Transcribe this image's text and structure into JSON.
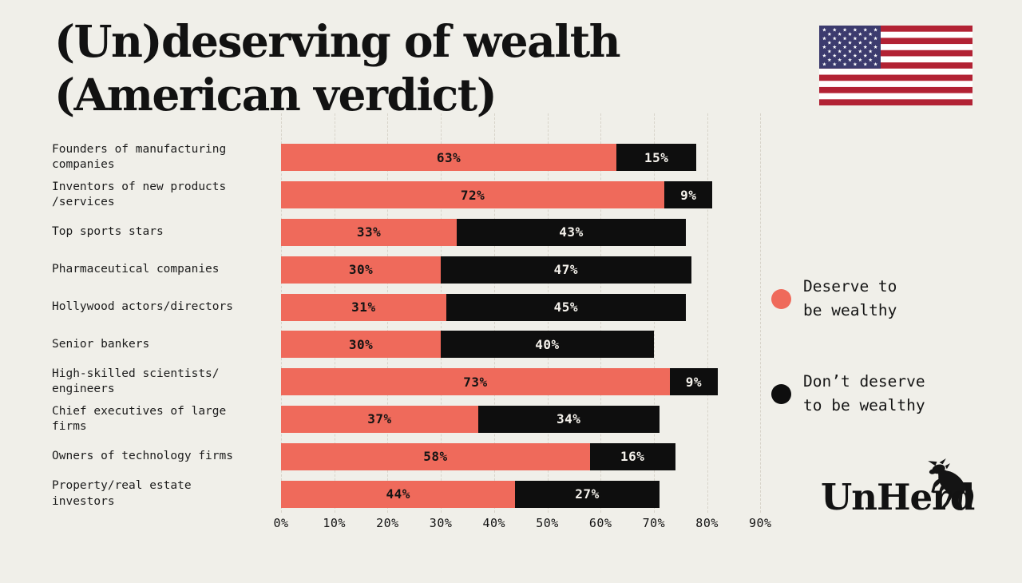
{
  "page": {
    "background": "#f0efe9"
  },
  "title": {
    "line1": "(Un)deserving of wealth",
    "line2": "(American verdict)"
  },
  "chart_data": {
    "type": "bar",
    "orientation": "horizontal",
    "stacked": true,
    "title": "(Un)deserving of wealth (American verdict)",
    "categories": [
      "Founders of manufacturing\ncompanies",
      "Inventors of new products\n/services",
      "Top sports stars",
      "Pharmaceutical companies",
      "Hollywood actors/directors",
      "Senior bankers",
      "High-skilled scientists/\nengineers",
      "Chief executives of large\nfirms",
      "Owners of technology firms",
      "Property/real estate\ninvestors"
    ],
    "series": [
      {
        "name": "Deserve to be wealthy",
        "color": "#ef6a5b",
        "text_color": "#141414",
        "values": [
          63,
          72,
          33,
          30,
          31,
          30,
          73,
          37,
          58,
          44
        ]
      },
      {
        "name": "Don't deserve to be wealthy",
        "color": "#0e0e0e",
        "text_color": "#f5f2ec",
        "values": [
          15,
          9,
          43,
          47,
          45,
          40,
          9,
          34,
          16,
          27
        ]
      }
    ],
    "value_suffix": "%",
    "x_ticks": [
      "0%",
      "10%",
      "20%",
      "30%",
      "40%",
      "50%",
      "60%",
      "70%",
      "80%",
      "90%"
    ],
    "xlim": [
      0,
      100
    ],
    "grid": "vertical-dashed",
    "legend_position": "right"
  },
  "legend": {
    "items": [
      {
        "label": "Deserve to\nbe wealthy",
        "color": "#ef6a5b"
      },
      {
        "label": "Don’t deserve\nto be wealthy",
        "color": "#0e0e0e"
      }
    ]
  },
  "branding": {
    "logo_text": "UnHerd",
    "flag_name": "us-flag",
    "flag_colors": {
      "red": "#b22234",
      "white": "#ffffff",
      "blue": "#3c3b6e",
      "star": "#ffffff"
    }
  }
}
